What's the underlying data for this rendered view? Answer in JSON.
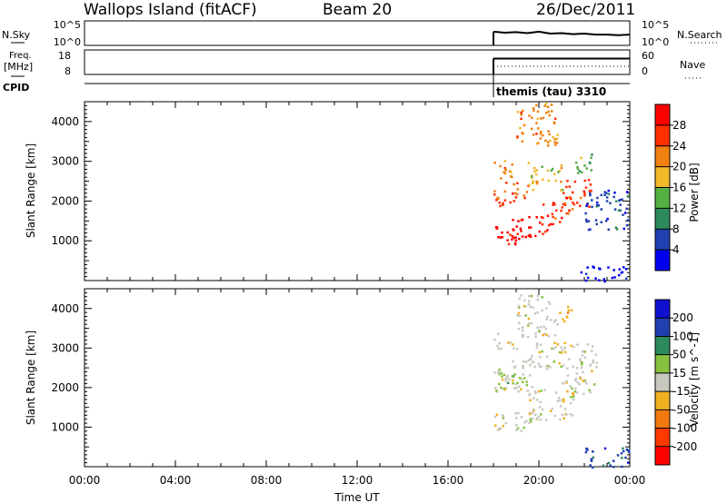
{
  "header": {
    "station": "Wallops Island (fitACF)",
    "beam": "Beam 20",
    "date": "26/Dec/2011"
  },
  "strips": {
    "nsky": {
      "label": "N.Sky",
      "left_ticks": [
        "10^5",
        "10^0"
      ],
      "right_ticks": [
        "10^5",
        "10^0"
      ],
      "right_label": "N.Search"
    },
    "freq": {
      "label_line1": "Freq.",
      "label_line2": "[MHz]",
      "left_ticks": [
        "18",
        "8"
      ],
      "right_ticks": [
        "60",
        "0"
      ],
      "right_label": "Nave"
    },
    "cpid": {
      "label": "CPID",
      "annotation": "themis (tau) 3310"
    }
  },
  "time_axis": {
    "label": "Time UT",
    "ticks": [
      "00:00",
      "04:00",
      "08:00",
      "12:00",
      "16:00",
      "20:00",
      "00:00"
    ]
  },
  "colors": {
    "power": [
      "#0000ee",
      "#2040b0",
      "#2e8a5a",
      "#55b042",
      "#f2b82a",
      "#f08010",
      "#ff3000",
      "#ff0000"
    ],
    "velocity": [
      "#ff0000",
      "#ff3a00",
      "#f07a10",
      "#f0b020",
      "#c8c8c0",
      "#88c040",
      "#2e8a5a",
      "#2040b0",
      "#1010d0"
    ],
    "ground_scatter": "#c8c8c0"
  },
  "chart_data": [
    {
      "type": "heatmap",
      "name": "power",
      "ylabel": "Slant Range [km]",
      "yticks": [
        1000,
        2000,
        3000,
        4000
      ],
      "ylim": [
        0,
        4500
      ],
      "xlim_hours": [
        0,
        24
      ],
      "colorbar_label": "Power [dB]",
      "colorbar_ticks": [
        "28",
        "24",
        "20",
        "16",
        "12",
        "8",
        "4"
      ],
      "data_start_hour": 18.0,
      "bands": [
        {
          "t": [
            18.0,
            19.4
          ],
          "r": [
            900,
            1400
          ],
          "level": 7
        },
        {
          "t": [
            18.8,
            20.4
          ],
          "r": [
            1100,
            1700
          ],
          "level": 7
        },
        {
          "t": [
            20.0,
            21.3
          ],
          "r": [
            1400,
            2000
          ],
          "level": 6
        },
        {
          "t": [
            21.0,
            22.3
          ],
          "r": [
            1800,
            2600
          ],
          "level": 6
        },
        {
          "t": [
            18.0,
            19.5
          ],
          "r": [
            1900,
            2500
          ],
          "level": 6
        },
        {
          "t": [
            18.0,
            19.0
          ],
          "r": [
            2600,
            3100
          ],
          "level": 5
        },
        {
          "t": [
            19.5,
            21.0
          ],
          "r": [
            2300,
            3000
          ],
          "level": 4
        },
        {
          "t": [
            21.5,
            22.5
          ],
          "r": [
            2700,
            3200
          ],
          "level": 3
        },
        {
          "t": [
            19.0,
            20.8
          ],
          "r": [
            3400,
            4500
          ],
          "level": 5
        },
        {
          "t": [
            22.0,
            24.0
          ],
          "r": [
            1300,
            2300
          ],
          "level": 1
        },
        {
          "t": [
            21.8,
            24.0
          ],
          "r": [
            0,
            400
          ],
          "level": 0
        }
      ]
    },
    {
      "type": "heatmap",
      "name": "velocity",
      "ylabel": "Slant Range [km]",
      "yticks": [
        1000,
        2000,
        3000,
        4000
      ],
      "ylim": [
        0,
        4500
      ],
      "xlim_hours": [
        0,
        24
      ],
      "colorbar_label": "Velocity [m s^-1]",
      "colorbar_ticks": [
        "200",
        "100",
        "50",
        "15",
        "-15",
        "-50",
        "-100",
        "-200"
      ],
      "data_start_hour": 18.0,
      "bands": [
        {
          "t": [
            18.0,
            20.0
          ],
          "r": [
            900,
            1400
          ],
          "level": 4
        },
        {
          "t": [
            19.5,
            21.5
          ],
          "r": [
            1200,
            2000
          ],
          "level": 4
        },
        {
          "t": [
            21.0,
            22.5
          ],
          "r": [
            1800,
            2600
          ],
          "level": 4
        },
        {
          "t": [
            18.0,
            19.8
          ],
          "r": [
            1900,
            2700
          ],
          "level": 4
        },
        {
          "t": [
            19.5,
            22.5
          ],
          "r": [
            2500,
            3200
          ],
          "level": 4
        },
        {
          "t": [
            19.0,
            20.8
          ],
          "r": [
            3300,
            4400
          ],
          "level": 4
        },
        {
          "t": [
            18.0,
            19.0
          ],
          "r": [
            3000,
            3400
          ],
          "level": 4
        },
        {
          "t": [
            20.6,
            21.4
          ],
          "r": [
            3700,
            4100
          ],
          "level": 3
        },
        {
          "t": [
            18.0,
            19.5
          ],
          "r": [
            2000,
            2400
          ],
          "level": 5
        },
        {
          "t": [
            22.0,
            24.0
          ],
          "r": [
            0,
            500
          ],
          "level": 7
        }
      ]
    }
  ],
  "nsky_series": {
    "hours": [
      18.0,
      18.5,
      19.0,
      19.5,
      20.0,
      20.5,
      21.0,
      21.5,
      22.0,
      22.5,
      23.0,
      23.5,
      24.0
    ],
    "log_values": [
      2.8,
      2.6,
      2.7,
      2.5,
      2.8,
      2.4,
      2.5,
      2.3,
      2.4,
      2.2,
      2.2,
      2.1,
      2.2
    ]
  },
  "freq_series": {
    "hours": [
      18.0,
      24.0
    ],
    "mhz": [
      14.5,
      14.5
    ]
  },
  "nave_series": {
    "hours": [
      18.0,
      24.0
    ],
    "values": [
      20,
      20
    ]
  }
}
